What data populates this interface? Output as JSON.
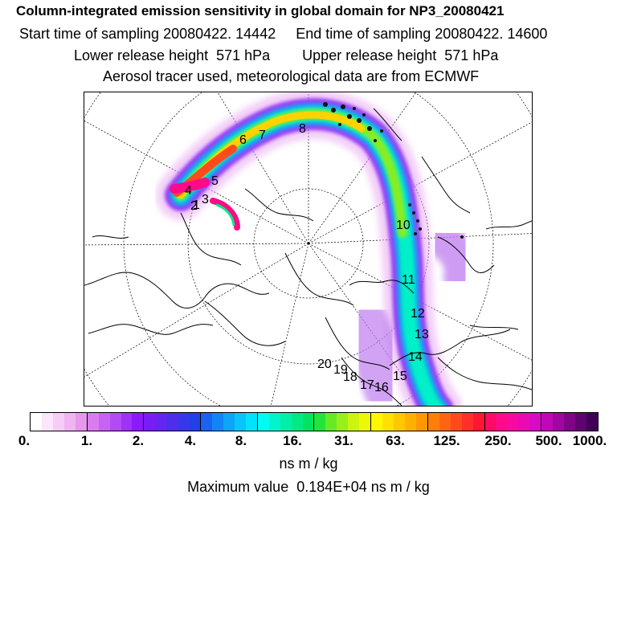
{
  "header": {
    "line1": "Column-integrated emission sensitivity in global domain for NP3_20080421",
    "line2": "Start time of sampling 20080422. 14442     End time of sampling 20080422. 14600",
    "line3": "Lower release height  571 hPa        Upper release height  571 hPa",
    "line4": "Aerosol tracer used, meteorological data are from ECMWF"
  },
  "map": {
    "projection": "north-polar-stereographic",
    "trajectory_labels": [
      "1",
      "2",
      "3",
      "4",
      "5",
      "6",
      "7",
      "8",
      "10",
      "11",
      "12",
      "13",
      "14",
      "15",
      "16",
      "17",
      "18",
      "19",
      "20"
    ]
  },
  "legend": {
    "tick_labels": [
      "0.",
      "1.",
      "2.",
      "4.",
      "8.",
      "16.",
      "31.",
      "63.",
      "125.",
      "250.",
      "500.",
      "1000."
    ],
    "unit": "ns m / kg",
    "max_value_text": "Maximum value  0.184E+04 ns m / kg",
    "colors": [
      "#ffffff",
      "#fbe6fb",
      "#f5cdf6",
      "#f0b4f2",
      "#e897ef",
      "#da7cf0",
      "#c862f2",
      "#b44af4",
      "#a032f7",
      "#8c1afa",
      "#7a1cf4",
      "#6625ef",
      "#4f2eeb",
      "#3a37e8",
      "#2240e6",
      "#1a63f0",
      "#1484f4",
      "#0ea4f7",
      "#08c4fa",
      "#02e2fd",
      "#00fbf0",
      "#00f5cc",
      "#00efa8",
      "#00e984",
      "#00e360",
      "#22e43c",
      "#66ea28",
      "#99ef1c",
      "#ccf410",
      "#eef806",
      "#fff700",
      "#ffe000",
      "#ffc800",
      "#ffb000",
      "#ff9800",
      "#ff7e0a",
      "#ff6414",
      "#ff4a1e",
      "#ff3028",
      "#ff1632",
      "#ff0a64",
      "#ff0a88",
      "#f70aa0",
      "#ea0ab4",
      "#d80ac4",
      "#c008b8",
      "#a006a0",
      "#800488",
      "#600270",
      "#400058"
    ]
  }
}
